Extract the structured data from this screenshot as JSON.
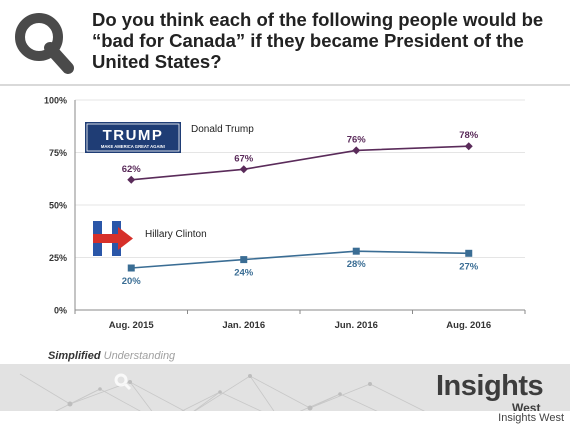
{
  "header": {
    "title": "Do you think each of the following people would be “bad for Canada” if they became President of the United States?"
  },
  "colors": {
    "trump_series": "#5a2b5a",
    "clinton_series": "#3a6d94",
    "trump_label": "#5a2b5a",
    "clinton_label": "#3a6d94",
    "trump_logo_bg": "#1f3d75",
    "clinton_logo_red": "#d6302a",
    "clinton_logo_blue": "#2a56a8"
  },
  "chart_data": {
    "type": "line",
    "categories": [
      "Aug. 2015",
      "Jan. 2016",
      "Jun. 2016",
      "Aug. 2016"
    ],
    "ylim": [
      0,
      100
    ],
    "yticks": [
      0,
      25,
      50,
      75,
      100
    ],
    "ytick_labels": [
      "0%",
      "25%",
      "50%",
      "75%",
      "100%"
    ],
    "grid": true,
    "series": [
      {
        "name": "Donald Trump",
        "key": "trump",
        "values": [
          62,
          67,
          76,
          78
        ],
        "labels": [
          "62%",
          "67%",
          "76%",
          "78%"
        ],
        "marker": "diamond",
        "label_position": "above"
      },
      {
        "name": "Hillary Clinton",
        "key": "clinton",
        "values": [
          20,
          24,
          28,
          27
        ],
        "labels": [
          "20%",
          "24%",
          "28%",
          "27%"
        ],
        "marker": "square",
        "label_position": "below"
      }
    ]
  },
  "logos": {
    "trump_wordmark": "TRUMP",
    "trump_slogan": "MAKE AMERICA GREAT AGAIN!",
    "clinton_icon": "hillary-h-arrow-logo"
  },
  "footer": {
    "tagline_bold": "Simplified",
    "tagline_light": "Understanding",
    "brand_main": "Insights",
    "brand_sub": "West",
    "credit": "Insights West"
  },
  "icons": {
    "header_icon": "magnifier-q-icon"
  }
}
